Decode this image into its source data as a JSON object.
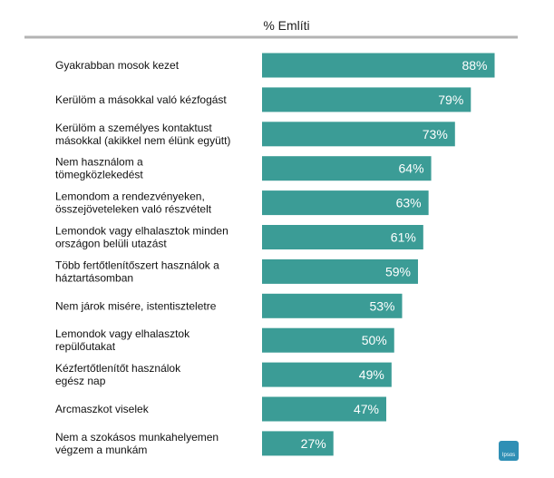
{
  "chart_data": {
    "type": "bar",
    "orientation": "horizontal",
    "column_header": "% Említi",
    "value_suffix": "%",
    "xlim": [
      0,
      100
    ],
    "bar_color": "#3b9c96",
    "categories": [
      [
        "Gyakrabban mosok kezet"
      ],
      [
        "Kerülöm a másokkal való kézfogást"
      ],
      [
        "Kerülöm a személyes kontaktust",
        "másokkal (akikkel nem élünk együtt)"
      ],
      [
        "Nem használom a",
        "tömegközlekedést"
      ],
      [
        "Lemondom a rendezvényeken,",
        "összejöveteleken való részvételt"
      ],
      [
        "Lemondok vagy elhalasztok minden",
        "országon belüli utazást"
      ],
      [
        "Több fertőtlenítőszert használok a",
        "háztartásomban"
      ],
      [
        "Nem járok misére, istentiszteletre"
      ],
      [
        "Lemondok vagy elhalasztok",
        "repülőutakat"
      ],
      [
        "Kézfertőtlenítőt használok",
        "egész nap"
      ],
      [
        "Arcmaszkot viselek"
      ],
      [
        "Nem a szokásos munkahelyemen",
        "végzem a munkám"
      ]
    ],
    "values": [
      88,
      79,
      73,
      64,
      63,
      61,
      59,
      53,
      50,
      49,
      47,
      27
    ]
  },
  "logo": {
    "text": "Ipsos",
    "color": "#2f8fb5"
  }
}
